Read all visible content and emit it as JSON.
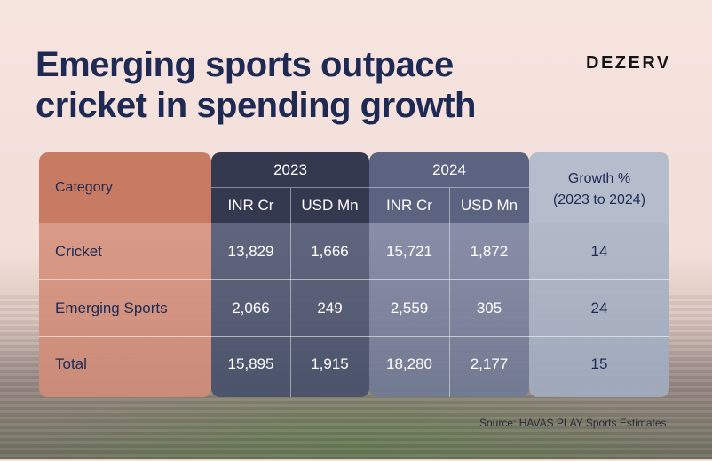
{
  "title_line1": "Emerging sports outpace",
  "title_line2": "cricket in spending growth",
  "brand": "DEZERV",
  "source": "Source: HAVAS PLAY Sports Estimates",
  "chart_data": {
    "type": "table",
    "title": "Emerging sports outpace cricket in spending growth",
    "header": {
      "category": "Category",
      "year_2023": "2023",
      "year_2024": "2024",
      "growth_line1": "Growth %",
      "growth_line2": "(2023 to 2024)",
      "inr": "INR Cr",
      "usd": "USD Mn"
    },
    "columns": [
      "Category",
      "2023 INR Cr",
      "2023 USD Mn",
      "2024 INR Cr",
      "2024 USD Mn",
      "Growth % (2023 to 2024)"
    ],
    "rows": [
      {
        "category": "Cricket",
        "inr_2023": "13,829",
        "usd_2023": "1,666",
        "inr_2024": "15,721",
        "usd_2024": "1,872",
        "growth": "14"
      },
      {
        "category": "Emerging Sports",
        "inr_2023": "2,066",
        "usd_2023": "249",
        "inr_2024": "2,559",
        "usd_2024": "305",
        "growth": "24"
      },
      {
        "category": "Total",
        "inr_2023": "15,895",
        "usd_2023": "1,915",
        "inr_2024": "18,280",
        "usd_2024": "2,177",
        "growth": "15"
      }
    ]
  }
}
